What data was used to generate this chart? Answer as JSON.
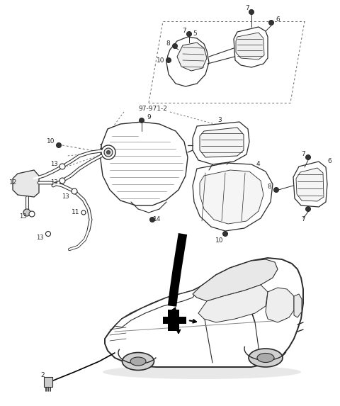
{
  "bg_color": "#ffffff",
  "lc": "#2a2a2a",
  "dc": "#666666",
  "figsize": [
    4.8,
    5.73
  ],
  "dpi": 100,
  "note97": "97-971-2"
}
